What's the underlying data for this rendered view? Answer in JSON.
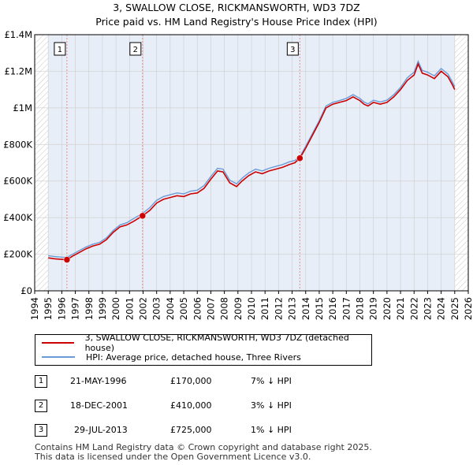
{
  "title_line1": "3, SWALLOW CLOSE, RICKMANSWORTH, WD3 7DZ",
  "title_line2": "Price paid vs. HM Land Registry's House Price Index (HPI)",
  "colors": {
    "property": "#cc0000",
    "hpi": "#6a9bd8",
    "sale_marker": "#cc0000",
    "shade": "#e8eef8"
  },
  "chart_data": {
    "type": "line",
    "title": "3, SWALLOW CLOSE, RICKMANSWORTH, WD3 7DZ — Price paid vs. HM Land Registry's House Price Index (HPI)",
    "xlabel": "",
    "ylabel": "",
    "xlim": [
      1994,
      2026
    ],
    "ylim": [
      0,
      1400000
    ],
    "x_ticks": [
      "1994",
      "1995",
      "1996",
      "1997",
      "1998",
      "1999",
      "2000",
      "2001",
      "2002",
      "2003",
      "2004",
      "2005",
      "2006",
      "2007",
      "2008",
      "2009",
      "2010",
      "2011",
      "2012",
      "2013",
      "2014",
      "2015",
      "2016",
      "2017",
      "2018",
      "2019",
      "2020",
      "2021",
      "2022",
      "2023",
      "2024",
      "2025",
      "2026"
    ],
    "y_ticks": [
      {
        "value": 0,
        "label": "£0"
      },
      {
        "value": 200000,
        "label": "£200K"
      },
      {
        "value": 400000,
        "label": "£400K"
      },
      {
        "value": 600000,
        "label": "£600K"
      },
      {
        "value": 800000,
        "label": "£800K"
      },
      {
        "value": 1000000,
        "label": "£1M"
      },
      {
        "value": 1200000,
        "label": "£1.2M"
      },
      {
        "value": 1400000,
        "label": "£1.4M"
      }
    ],
    "hatched_before": 1995.0,
    "hatched_after": 2025.0,
    "series": [
      {
        "name": "3, SWALLOW CLOSE, RICKMANSWORTH, WD3 7DZ (detached house)",
        "color": "#cc0000",
        "x": [
          1995.0,
          1995.5,
          1996.0,
          1996.38,
          1996.8,
          1997.3,
          1997.8,
          1998.3,
          1998.8,
          1999.3,
          1999.8,
          2000.3,
          2000.8,
          2001.3,
          2001.96,
          2002.5,
          2003.0,
          2003.5,
          2004.0,
          2004.5,
          2005.0,
          2005.5,
          2006.0,
          2006.5,
          2007.0,
          2007.5,
          2007.9,
          2008.4,
          2008.9,
          2009.3,
          2009.8,
          2010.3,
          2010.8,
          2011.3,
          2011.8,
          2012.3,
          2012.8,
          2013.2,
          2013.57,
          2014.0,
          2014.5,
          2015.0,
          2015.5,
          2016.0,
          2016.5,
          2017.0,
          2017.5,
          2018.0,
          2018.3,
          2018.6,
          2019.0,
          2019.5,
          2020.0,
          2020.5,
          2021.0,
          2021.5,
          2022.0,
          2022.3,
          2022.6,
          2023.0,
          2023.5,
          2024.0,
          2024.5,
          2024.8,
          2025.0
        ],
        "y": [
          180000,
          175000,
          172000,
          170000,
          190000,
          210000,
          230000,
          245000,
          255000,
          280000,
          320000,
          350000,
          360000,
          380000,
          410000,
          440000,
          480000,
          500000,
          510000,
          520000,
          515000,
          530000,
          535000,
          560000,
          610000,
          655000,
          650000,
          590000,
          570000,
          600000,
          630000,
          650000,
          640000,
          655000,
          665000,
          675000,
          690000,
          700000,
          725000,
          780000,
          850000,
          920000,
          1000000,
          1020000,
          1030000,
          1040000,
          1060000,
          1040000,
          1020000,
          1010000,
          1030000,
          1020000,
          1030000,
          1060000,
          1100000,
          1150000,
          1180000,
          1240000,
          1190000,
          1180000,
          1160000,
          1200000,
          1170000,
          1130000,
          1100000
        ]
      },
      {
        "name": "HPI: Average price, detached house, Three Rivers",
        "color": "#6a9bd8",
        "x": [
          1995.0,
          1995.5,
          1996.0,
          1996.38,
          1996.8,
          1997.3,
          1997.8,
          1998.3,
          1998.8,
          1999.3,
          1999.8,
          2000.3,
          2000.8,
          2001.3,
          2001.96,
          2002.5,
          2003.0,
          2003.5,
          2004.0,
          2004.5,
          2005.0,
          2005.5,
          2006.0,
          2006.5,
          2007.0,
          2007.5,
          2007.9,
          2008.4,
          2008.9,
          2009.3,
          2009.8,
          2010.3,
          2010.8,
          2011.3,
          2011.8,
          2012.3,
          2012.8,
          2013.2,
          2013.57,
          2014.0,
          2014.5,
          2015.0,
          2015.5,
          2016.0,
          2016.5,
          2017.0,
          2017.5,
          2018.0,
          2018.3,
          2018.6,
          2019.0,
          2019.5,
          2020.0,
          2020.5,
          2021.0,
          2021.5,
          2022.0,
          2022.3,
          2022.6,
          2023.0,
          2023.5,
          2024.0,
          2024.5,
          2024.8,
          2025.0
        ],
        "y": [
          192000,
          187000,
          184000,
          183000,
          200000,
          220000,
          240000,
          255000,
          265000,
          290000,
          330000,
          360000,
          372000,
          395000,
          423000,
          455000,
          495000,
          515000,
          525000,
          535000,
          530000,
          545000,
          550000,
          575000,
          625000,
          670000,
          665000,
          605000,
          585000,
          615000,
          645000,
          665000,
          655000,
          670000,
          680000,
          690000,
          705000,
          712000,
          733000,
          790000,
          860000,
          930000,
          1010000,
          1030000,
          1040000,
          1052000,
          1072000,
          1052000,
          1032000,
          1022000,
          1042000,
          1032000,
          1042000,
          1072000,
          1112000,
          1165000,
          1195000,
          1255000,
          1205000,
          1195000,
          1175000,
          1215000,
          1185000,
          1145000,
          1115000
        ]
      }
    ],
    "sales": [
      {
        "label": "1",
        "x": 1996.38,
        "y": 170000
      },
      {
        "label": "2",
        "x": 2001.96,
        "y": 410000
      },
      {
        "label": "3",
        "x": 2013.57,
        "y": 725000
      }
    ]
  },
  "legend": {
    "property_label": "3, SWALLOW CLOSE, RICKMANSWORTH, WD3 7DZ (detached house)",
    "hpi_label": "HPI: Average price, detached house, Three Rivers"
  },
  "transactions": [
    {
      "num": "1",
      "date": "21-MAY-1996",
      "price": "£170,000",
      "hpi": "7% ↓ HPI"
    },
    {
      "num": "2",
      "date": "18-DEC-2001",
      "price": "£410,000",
      "hpi": "3% ↓ HPI"
    },
    {
      "num": "3",
      "date": "29-JUL-2013",
      "price": "£725,000",
      "hpi": "1% ↓ HPI"
    }
  ],
  "footer": {
    "line1": "Contains HM Land Registry data © Crown copyright and database right 2025.",
    "line2": "This data is licensed under the Open Government Licence v3.0."
  }
}
